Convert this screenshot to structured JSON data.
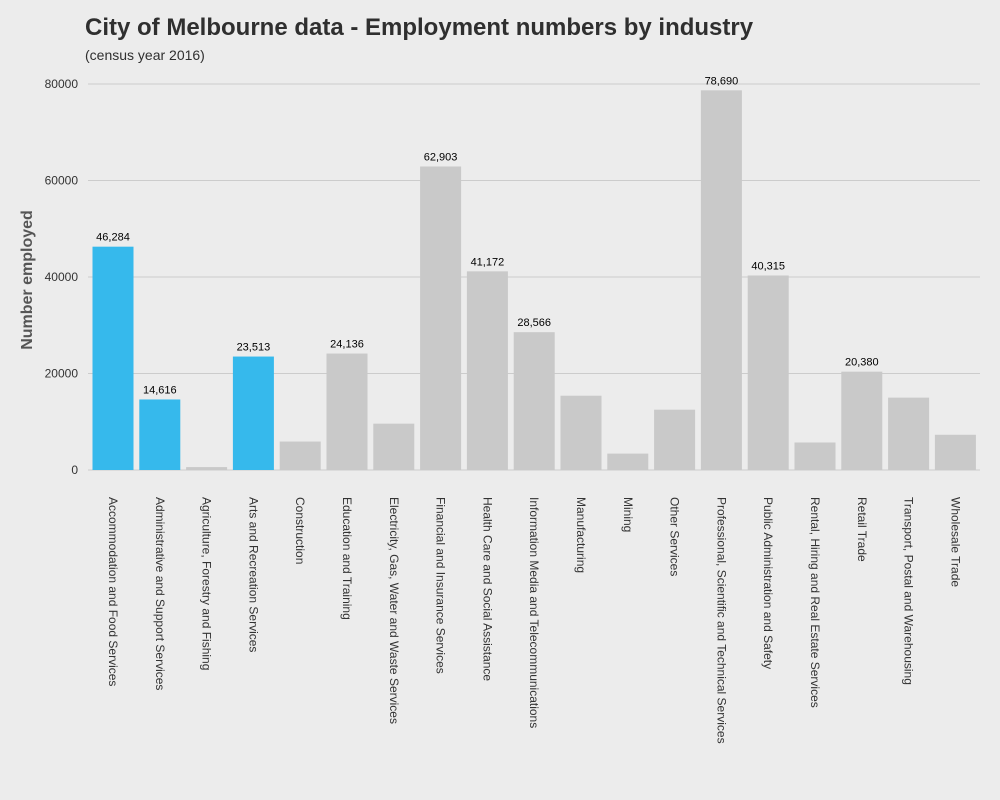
{
  "chart_data": {
    "type": "bar",
    "title": "City of Melbourne data - Employment numbers by industry",
    "subtitle": "(census year 2016)",
    "xlabel": "",
    "ylabel": "Number employed",
    "ylim": [
      0,
      80000
    ],
    "yticks": [
      0,
      20000,
      40000,
      60000,
      80000
    ],
    "grid": true,
    "colors": {
      "highlight": "#36b9ec",
      "default": "#c9c9c9",
      "gridline": "#cccccc"
    },
    "categories": [
      "Accommodation and Food Services",
      "Administrative and Support Services",
      "Agriculture, Forestry and Fishing",
      "Arts and Recreation Services",
      "Construction",
      "Education and Training",
      "Electricity, Gas, Water and Waste Services",
      "Financial and Insurance Services",
      "Health Care and Social Assistance",
      "Information Media and Telecommunications",
      "Manufacturing",
      "Mining",
      "Other Services",
      "Professional, Scientific and Technical Services",
      "Public Administration and Safety",
      "Rental, Hiring and Real Estate Services",
      "Retail Trade",
      "Transport, Postal and Warehousing",
      "Wholesale Trade"
    ],
    "values": [
      46284,
      14616,
      600,
      23513,
      5900,
      24136,
      9600,
      62903,
      41172,
      28566,
      15400,
      3400,
      12500,
      78690,
      40315,
      5700,
      20380,
      15000,
      7300
    ],
    "highlighted": [
      true,
      true,
      false,
      true,
      false,
      false,
      false,
      false,
      false,
      false,
      false,
      false,
      false,
      false,
      false,
      false,
      false,
      false,
      false
    ],
    "data_labels": [
      "46,284",
      "14,616",
      "",
      "23,513",
      "",
      "24,136",
      "",
      "62,903",
      "41,172",
      "28,566",
      "",
      "",
      "",
      "78,690",
      "40,315",
      "",
      "20,380",
      "",
      ""
    ]
  }
}
